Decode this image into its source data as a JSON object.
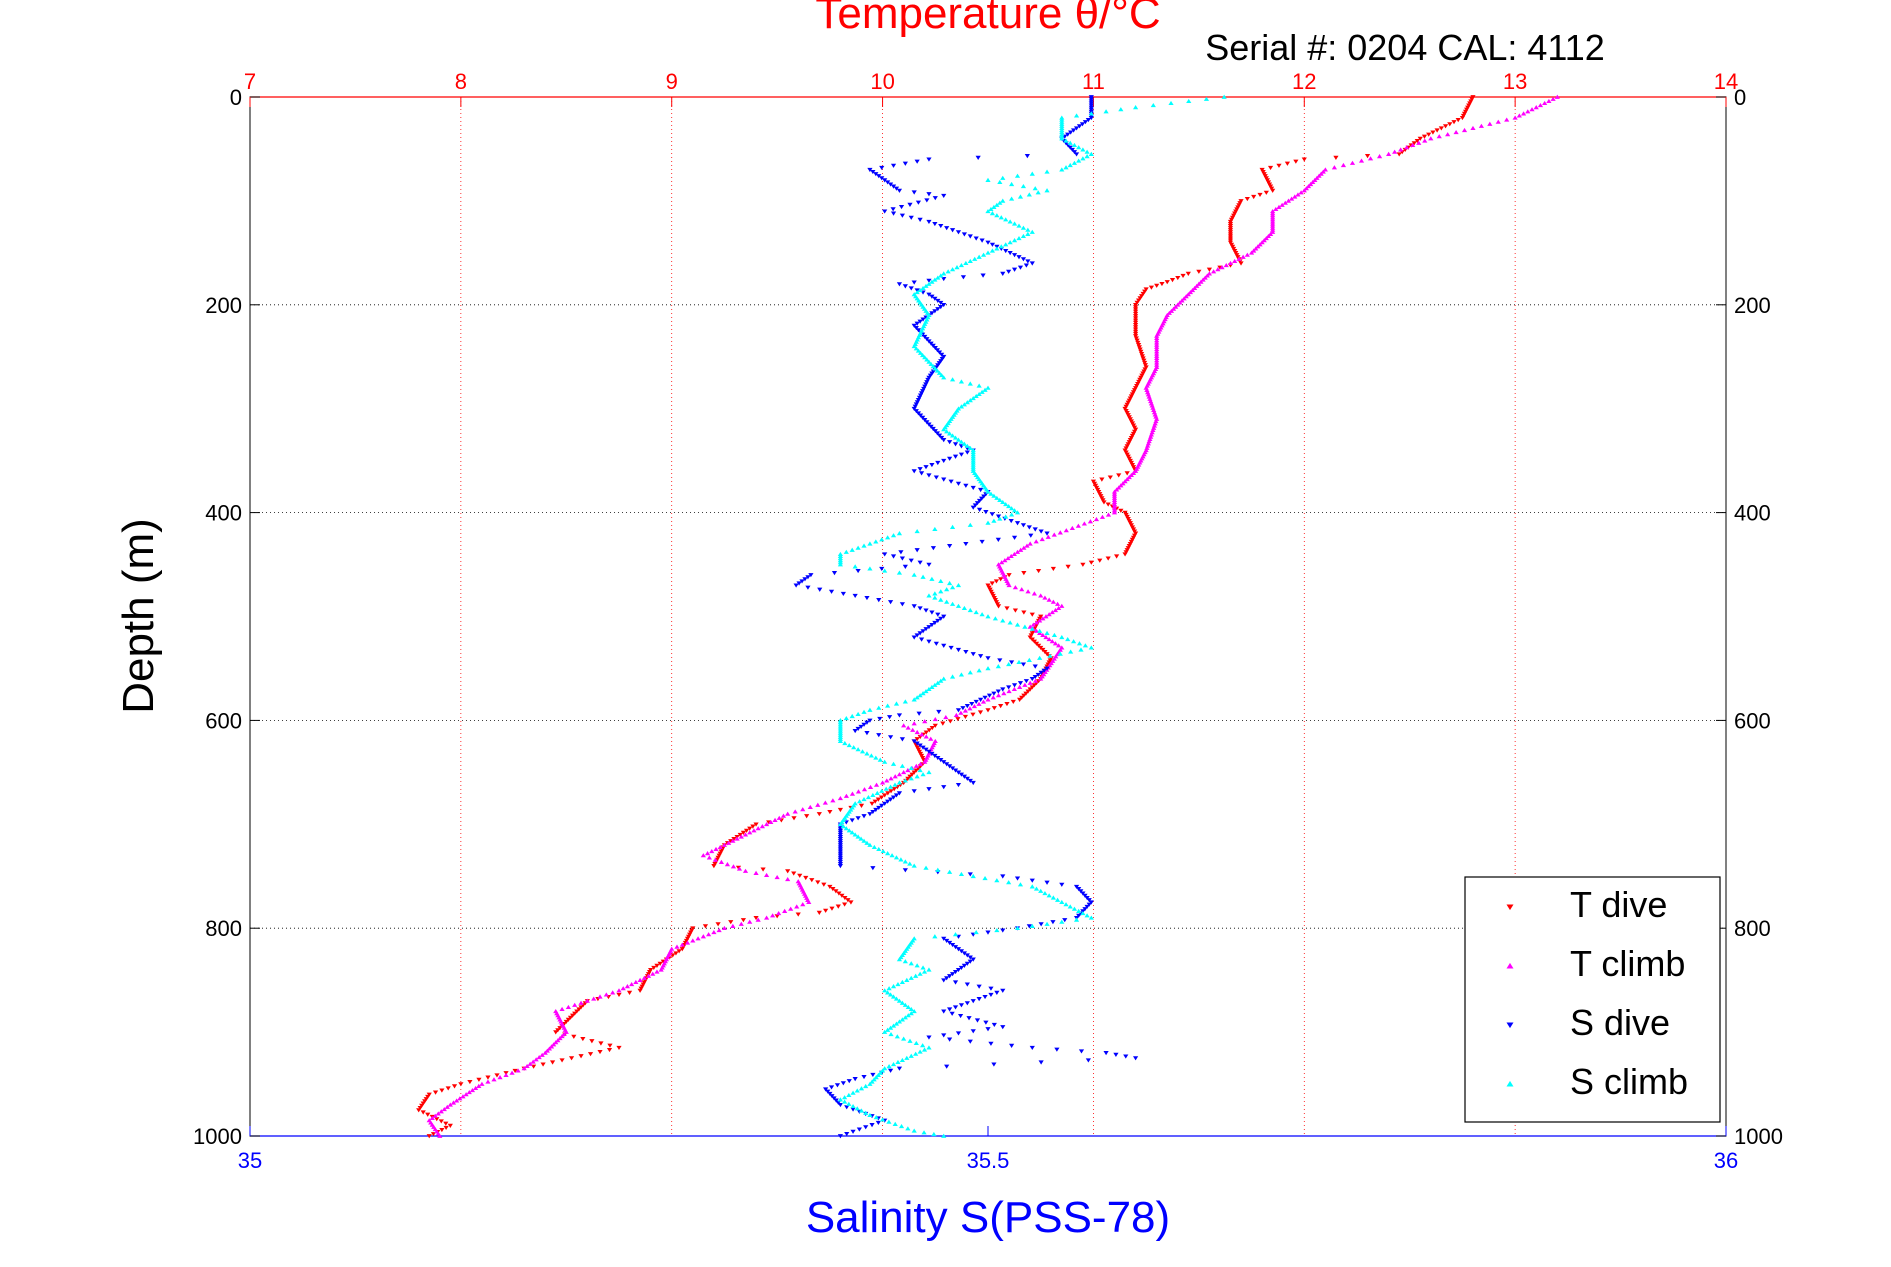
{
  "chart_data": {
    "type": "scatter",
    "title": "Temperature θ/°C",
    "subtitle": "Serial #: 0204  CAL: 4112",
    "ylabel": "Depth (m)",
    "xlabel": "Salinity S(PSS-78)",
    "xlabel_top": "Temperature θ/°C",
    "ylim": [
      0,
      1000
    ],
    "y_reversed": true,
    "y_ticks": [
      "0",
      "200",
      "400",
      "600",
      "800",
      "1000"
    ],
    "x_bottom": {
      "label": "Salinity S(PSS-78)",
      "range": [
        35,
        36
      ],
      "ticks": [
        "35",
        "35.5",
        "36"
      ],
      "color": "#0000ff"
    },
    "x_top": {
      "label": "Temperature θ/°C",
      "range": [
        7,
        14
      ],
      "ticks": [
        "7",
        "8",
        "9",
        "10",
        "11",
        "12",
        "13",
        "14"
      ],
      "color": "#ff0000"
    },
    "grid": true,
    "legend_position": "bottom-right",
    "series": [
      {
        "name": "T dive",
        "axis": "temperature",
        "color": "#ff0000",
        "marker": "triangle-down",
        "points": [
          [
            12.8,
            0
          ],
          [
            12.75,
            20
          ],
          [
            12.55,
            40
          ],
          [
            12.45,
            55
          ],
          [
            12.0,
            60
          ],
          [
            11.8,
            70
          ],
          [
            11.85,
            90
          ],
          [
            11.7,
            100
          ],
          [
            11.65,
            120
          ],
          [
            11.65,
            140
          ],
          [
            11.7,
            160
          ],
          [
            11.45,
            170
          ],
          [
            11.35,
            178
          ],
          [
            11.25,
            185
          ],
          [
            11.2,
            200
          ],
          [
            11.2,
            230
          ],
          [
            11.25,
            260
          ],
          [
            11.2,
            280
          ],
          [
            11.15,
            300
          ],
          [
            11.2,
            320
          ],
          [
            11.15,
            340
          ],
          [
            11.2,
            360
          ],
          [
            11.0,
            370
          ],
          [
            11.05,
            390
          ],
          [
            11.15,
            400
          ],
          [
            11.2,
            420
          ],
          [
            11.15,
            440
          ],
          [
            10.95,
            450
          ],
          [
            10.6,
            460
          ],
          [
            10.5,
            470
          ],
          [
            10.55,
            490
          ],
          [
            10.75,
            500
          ],
          [
            10.7,
            520
          ],
          [
            10.8,
            540
          ],
          [
            10.75,
            560
          ],
          [
            10.65,
            580
          ],
          [
            10.5,
            590
          ],
          [
            10.25,
            605
          ],
          [
            10.15,
            620
          ],
          [
            10.2,
            640
          ],
          [
            10.1,
            660
          ],
          [
            9.95,
            680
          ],
          [
            9.7,
            690
          ],
          [
            9.4,
            700
          ],
          [
            9.25,
            720
          ],
          [
            9.2,
            740
          ],
          [
            9.55,
            745
          ],
          [
            9.75,
            760
          ],
          [
            9.85,
            775
          ],
          [
            9.7,
            785
          ],
          [
            9.4,
            790
          ],
          [
            9.1,
            800
          ],
          [
            9.05,
            820
          ],
          [
            8.9,
            840
          ],
          [
            8.85,
            860
          ],
          [
            8.6,
            870
          ],
          [
            8.55,
            880
          ],
          [
            8.45,
            900
          ],
          [
            8.75,
            915
          ],
          [
            8.3,
            935
          ],
          [
            8.0,
            950
          ],
          [
            7.85,
            960
          ],
          [
            7.8,
            975
          ],
          [
            7.95,
            990
          ],
          [
            7.85,
            1000
          ]
        ]
      },
      {
        "name": "T climb",
        "axis": "temperature",
        "color": "#ff00ff",
        "marker": "triangle-up",
        "points": [
          [
            13.2,
            0
          ],
          [
            13.0,
            20
          ],
          [
            12.6,
            40
          ],
          [
            12.4,
            55
          ],
          [
            12.1,
            70
          ],
          [
            12.0,
            90
          ],
          [
            11.85,
            110
          ],
          [
            11.85,
            130
          ],
          [
            11.75,
            150
          ],
          [
            11.55,
            170
          ],
          [
            11.45,
            190
          ],
          [
            11.35,
            210
          ],
          [
            11.3,
            230
          ],
          [
            11.3,
            260
          ],
          [
            11.25,
            280
          ],
          [
            11.3,
            310
          ],
          [
            11.25,
            340
          ],
          [
            11.2,
            360
          ],
          [
            11.1,
            380
          ],
          [
            11.1,
            400
          ],
          [
            10.9,
            415
          ],
          [
            10.7,
            430
          ],
          [
            10.55,
            450
          ],
          [
            10.6,
            470
          ],
          [
            10.75,
            480
          ],
          [
            10.85,
            490
          ],
          [
            10.7,
            510
          ],
          [
            10.85,
            530
          ],
          [
            10.75,
            560
          ],
          [
            10.5,
            580
          ],
          [
            10.35,
            595
          ],
          [
            10.1,
            605
          ],
          [
            10.25,
            620
          ],
          [
            10.2,
            640
          ],
          [
            10.0,
            660
          ],
          [
            9.8,
            675
          ],
          [
            9.55,
            690
          ],
          [
            9.35,
            710
          ],
          [
            9.15,
            730
          ],
          [
            9.35,
            745
          ],
          [
            9.6,
            755
          ],
          [
            9.65,
            775
          ],
          [
            9.45,
            790
          ],
          [
            9.25,
            800
          ],
          [
            9.0,
            820
          ],
          [
            8.95,
            840
          ],
          [
            8.75,
            860
          ],
          [
            8.45,
            880
          ],
          [
            8.5,
            900
          ],
          [
            8.4,
            920
          ],
          [
            8.3,
            935
          ],
          [
            8.1,
            950
          ],
          [
            7.95,
            970
          ],
          [
            7.85,
            985
          ],
          [
            7.9,
            1000
          ]
        ]
      },
      {
        "name": "S dive",
        "axis": "salinity",
        "color": "#0000ff",
        "marker": "triangle-down",
        "points": [
          [
            35.57,
            0
          ],
          [
            35.57,
            20
          ],
          [
            35.55,
            40
          ],
          [
            35.56,
            55
          ],
          [
            35.46,
            60
          ],
          [
            35.42,
            70
          ],
          [
            35.44,
            90
          ],
          [
            35.47,
            95
          ],
          [
            35.43,
            110
          ],
          [
            35.46,
            120
          ],
          [
            35.48,
            130
          ],
          [
            35.5,
            140
          ],
          [
            35.53,
            160
          ],
          [
            35.51,
            170
          ],
          [
            35.47,
            175
          ],
          [
            35.44,
            180
          ],
          [
            35.46,
            190
          ],
          [
            35.47,
            200
          ],
          [
            35.45,
            220
          ],
          [
            35.47,
            250
          ],
          [
            35.46,
            270
          ],
          [
            35.45,
            300
          ],
          [
            35.47,
            330
          ],
          [
            35.49,
            340
          ],
          [
            35.45,
            360
          ],
          [
            35.5,
            380
          ],
          [
            35.49,
            395
          ],
          [
            35.52,
            410
          ],
          [
            35.54,
            420
          ],
          [
            35.43,
            440
          ],
          [
            35.46,
            450
          ],
          [
            35.38,
            460
          ],
          [
            35.37,
            470
          ],
          [
            35.41,
            480
          ],
          [
            35.45,
            490
          ],
          [
            35.47,
            500
          ],
          [
            35.45,
            520
          ],
          [
            35.5,
            540
          ],
          [
            35.54,
            550
          ],
          [
            35.53,
            560
          ],
          [
            35.51,
            570
          ],
          [
            35.48,
            590
          ],
          [
            35.44,
            595
          ],
          [
            35.42,
            600
          ],
          [
            35.41,
            610
          ],
          [
            35.45,
            620
          ],
          [
            35.47,
            640
          ],
          [
            35.49,
            660
          ],
          [
            35.44,
            670
          ],
          [
            35.42,
            690
          ],
          [
            35.4,
            700
          ],
          [
            35.4,
            720
          ],
          [
            35.4,
            740
          ],
          [
            35.51,
            750
          ],
          [
            35.56,
            760
          ],
          [
            35.57,
            775
          ],
          [
            35.56,
            790
          ],
          [
            35.52,
            800
          ],
          [
            35.47,
            810
          ],
          [
            35.49,
            830
          ],
          [
            35.47,
            850
          ],
          [
            35.51,
            860
          ],
          [
            35.47,
            880
          ],
          [
            35.51,
            895
          ],
          [
            35.46,
            905
          ],
          [
            35.53,
            915
          ],
          [
            35.58,
            920
          ],
          [
            35.6,
            925
          ],
          [
            35.44,
            935
          ],
          [
            35.41,
            945
          ],
          [
            35.39,
            955
          ],
          [
            35.4,
            970
          ],
          [
            35.43,
            985
          ],
          [
            35.4,
            1000
          ]
        ]
      },
      {
        "name": "S climb",
        "axis": "salinity",
        "color": "#00ffff",
        "marker": "triangle-up",
        "points": [
          [
            35.66,
            0
          ],
          [
            35.6,
            10
          ],
          [
            35.55,
            20
          ],
          [
            35.55,
            40
          ],
          [
            35.57,
            55
          ],
          [
            35.55,
            70
          ],
          [
            35.5,
            80
          ],
          [
            35.54,
            90
          ],
          [
            35.51,
            100
          ],
          [
            35.5,
            110
          ],
          [
            35.53,
            130
          ],
          [
            35.5,
            150
          ],
          [
            35.47,
            170
          ],
          [
            35.45,
            190
          ],
          [
            35.46,
            210
          ],
          [
            35.45,
            240
          ],
          [
            35.47,
            270
          ],
          [
            35.5,
            280
          ],
          [
            35.48,
            300
          ],
          [
            35.47,
            320
          ],
          [
            35.49,
            340
          ],
          [
            35.49,
            360
          ],
          [
            35.5,
            380
          ],
          [
            35.52,
            400
          ],
          [
            35.5,
            410
          ],
          [
            35.44,
            420
          ],
          [
            35.42,
            430
          ],
          [
            35.4,
            440
          ],
          [
            35.4,
            450
          ],
          [
            35.45,
            460
          ],
          [
            35.48,
            470
          ],
          [
            35.46,
            480
          ],
          [
            35.5,
            500
          ],
          [
            35.55,
            520
          ],
          [
            35.57,
            530
          ],
          [
            35.5,
            550
          ],
          [
            35.47,
            560
          ],
          [
            35.45,
            580
          ],
          [
            35.42,
            590
          ],
          [
            35.4,
            600
          ],
          [
            35.4,
            620
          ],
          [
            35.43,
            640
          ],
          [
            35.46,
            650
          ],
          [
            35.44,
            660
          ],
          [
            35.41,
            680
          ],
          [
            35.4,
            700
          ],
          [
            35.42,
            720
          ],
          [
            35.45,
            740
          ],
          [
            35.49,
            750
          ],
          [
            35.53,
            760
          ],
          [
            35.55,
            775
          ],
          [
            35.57,
            790
          ],
          [
            35.52,
            800
          ],
          [
            35.45,
            810
          ],
          [
            35.44,
            830
          ],
          [
            35.46,
            840
          ],
          [
            35.43,
            860
          ],
          [
            35.45,
            880
          ],
          [
            35.43,
            900
          ],
          [
            35.46,
            915
          ],
          [
            35.43,
            935
          ],
          [
            35.42,
            950
          ],
          [
            35.4,
            965
          ],
          [
            35.42,
            980
          ],
          [
            35.45,
            995
          ],
          [
            35.47,
            1000
          ]
        ]
      }
    ]
  }
}
